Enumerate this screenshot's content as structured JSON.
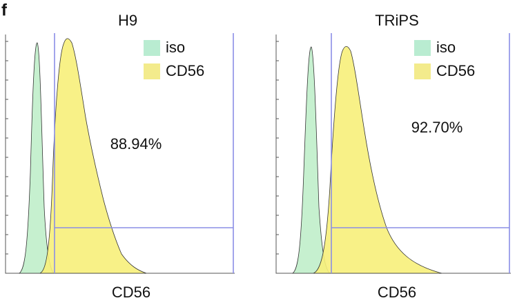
{
  "figure_label": "f",
  "panels": [
    {
      "title": "H9",
      "legend": [
        "iso",
        "CD56"
      ],
      "percentage": "88.94%",
      "x_label": "CD56"
    },
    {
      "title": "TRiPS",
      "legend": [
        "iso",
        "CD56"
      ],
      "percentage": "92.70%",
      "x_label": "CD56"
    }
  ]
}
